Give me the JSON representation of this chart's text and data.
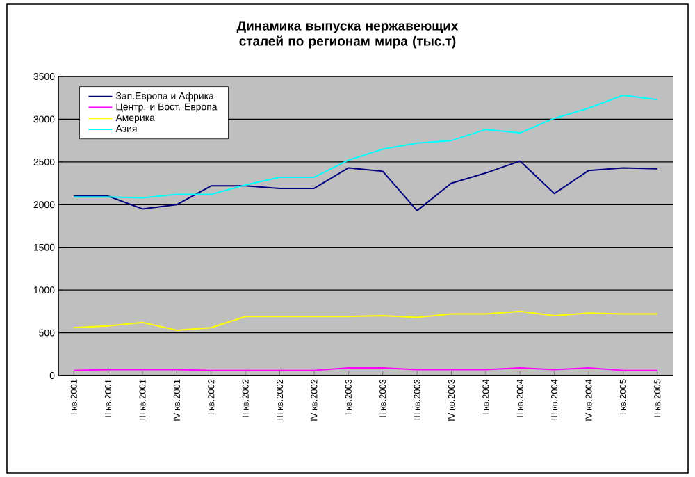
{
  "chart_data": {
    "type": "line",
    "title": "Динамика выпуска нержавеющих сталей по регионам мира (тыс.т)",
    "categories": [
      "I кв.2001",
      "II кв.2001",
      "III кв.2001",
      "IV кв.2001",
      "I кв.2002",
      "II кв.2002",
      "III кв.2002",
      "IV кв.2002",
      "I кв.2003",
      "II кв.2003",
      "III кв.2003",
      "IV кв.2003",
      "I кв.2004",
      "II кв.2004",
      "III кв.2004",
      "IV кв.2004",
      "I кв.2005",
      "II кв.2005"
    ],
    "series": [
      {
        "name": "Зап.Европа и Африка",
        "color": "#000080",
        "values": [
          2100,
          2100,
          1950,
          2000,
          2220,
          2220,
          2190,
          2190,
          2430,
          2390,
          1930,
          2250,
          2370,
          2510,
          2130,
          2400,
          2430,
          2420
        ]
      },
      {
        "name": "Центр. и Вост. Европа",
        "color": "#ff00ff",
        "values": [
          60,
          70,
          70,
          70,
          60,
          60,
          60,
          60,
          90,
          90,
          70,
          70,
          70,
          90,
          70,
          90,
          60,
          60
        ]
      },
      {
        "name": "Америка",
        "color": "#ffff00",
        "values": [
          560,
          580,
          620,
          530,
          560,
          690,
          690,
          690,
          690,
          700,
          680,
          720,
          720,
          750,
          700,
          730,
          720,
          720
        ]
      },
      {
        "name": "Азия",
        "color": "#00ffff",
        "values": [
          2090,
          2090,
          2080,
          2120,
          2120,
          2230,
          2320,
          2320,
          2520,
          2650,
          2720,
          2750,
          2880,
          2840,
          3010,
          3130,
          3280,
          3230
        ]
      }
    ],
    "ylim": [
      0,
      3500
    ],
    "yticks": [
      0,
      500,
      1000,
      1500,
      2000,
      2500,
      3000,
      3500
    ],
    "grid": "y",
    "legend": "top left"
  }
}
